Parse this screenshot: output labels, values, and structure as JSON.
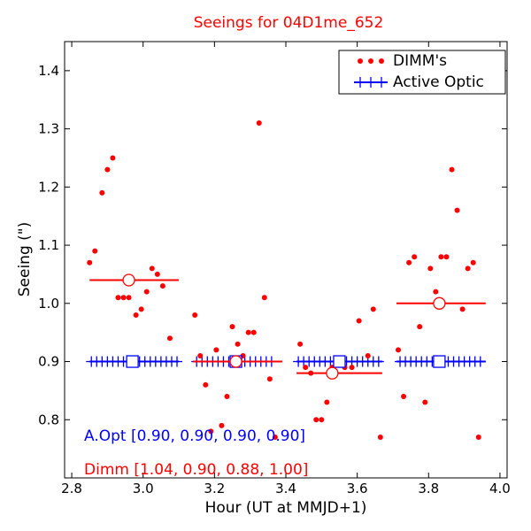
{
  "colors": {
    "dimm": "#ff0000",
    "aopt": "#0000ff",
    "axis": "#000000",
    "marker_fill": "#ffffff"
  },
  "chart_data": {
    "type": "scatter",
    "title": "Seeings for 04D1me_652",
    "xlabel": "Hour (UT at MMJD+1)",
    "ylabel": "Seeing (\")",
    "xlim": [
      2.78,
      4.02
    ],
    "ylim": [
      0.7,
      1.45
    ],
    "xticks": [
      2.8,
      3.0,
      3.2,
      3.4,
      3.6,
      3.8,
      4.0
    ],
    "xtick_labels": [
      "2.8",
      "3.0",
      "3.2",
      "3.4",
      "3.6",
      "3.8",
      "4.0"
    ],
    "yticks": [
      0.8,
      0.9,
      1.0,
      1.1,
      1.2,
      1.3,
      1.4
    ],
    "ytick_labels": [
      "0.8",
      "0.9",
      "1.0",
      "1.1",
      "1.2",
      "1.3",
      "1.4"
    ],
    "legend": {
      "position": "top-right",
      "entries": [
        {
          "label": "DIMM's",
          "series": "dimm"
        },
        {
          "label": "Active Optic",
          "series": "aopt"
        }
      ]
    },
    "annotations": {
      "aopt_text": "A.Opt [0.90, 0.90, 0.90, 0.90]",
      "dimm_text": "Dimm [1.04, 0.90, 0.88, 1.00]"
    },
    "series": [
      {
        "name": "DIMM's",
        "key": "dimm",
        "x": [
          2.85,
          2.865,
          2.885,
          2.9,
          2.915,
          2.93,
          2.945,
          2.96,
          2.98,
          2.995,
          3.01,
          3.025,
          3.04,
          3.055,
          3.075,
          3.145,
          3.16,
          3.175,
          3.19,
          3.205,
          3.22,
          3.235,
          3.25,
          3.265,
          3.28,
          3.295,
          3.31,
          3.325,
          3.34,
          3.355,
          3.37,
          3.44,
          3.455,
          3.47,
          3.485,
          3.5,
          3.515,
          3.53,
          3.55,
          3.565,
          3.585,
          3.605,
          3.63,
          3.645,
          3.665,
          3.715,
          3.73,
          3.745,
          3.76,
          3.775,
          3.79,
          3.805,
          3.82,
          3.835,
          3.85,
          3.865,
          3.88,
          3.895,
          3.91,
          3.925,
          3.94
        ],
        "y": [
          1.07,
          1.09,
          1.19,
          1.23,
          1.25,
          1.01,
          1.01,
          1.01,
          0.98,
          0.99,
          1.02,
          1.06,
          1.05,
          1.03,
          0.94,
          0.98,
          0.91,
          0.86,
          0.78,
          0.92,
          0.79,
          0.84,
          0.96,
          0.93,
          0.91,
          0.95,
          0.95,
          1.31,
          1.01,
          0.87,
          0.77,
          0.93,
          0.89,
          0.88,
          0.8,
          0.8,
          0.83,
          0.89,
          0.9,
          0.89,
          0.89,
          0.97,
          0.91,
          0.99,
          0.77,
          0.92,
          0.84,
          1.07,
          1.08,
          0.96,
          0.83,
          1.06,
          1.02,
          1.08,
          1.08,
          1.23,
          1.16,
          0.99,
          1.06,
          1.07,
          0.77
        ]
      },
      {
        "name": "Active Optic",
        "key": "aopt",
        "x": [
          2.855,
          2.87,
          2.885,
          2.9,
          2.915,
          2.93,
          2.945,
          2.96,
          2.975,
          2.99,
          3.005,
          3.02,
          3.035,
          3.05,
          3.065,
          3.08,
          3.095,
          3.15,
          3.165,
          3.18,
          3.195,
          3.21,
          3.225,
          3.24,
          3.255,
          3.27,
          3.285,
          3.3,
          3.315,
          3.33,
          3.345,
          3.36,
          3.435,
          3.45,
          3.465,
          3.48,
          3.495,
          3.51,
          3.525,
          3.54,
          3.555,
          3.57,
          3.585,
          3.6,
          3.615,
          3.63,
          3.645,
          3.66,
          3.72,
          3.735,
          3.75,
          3.765,
          3.78,
          3.795,
          3.81,
          3.825,
          3.84,
          3.855,
          3.87,
          3.885,
          3.9,
          3.915,
          3.93,
          3.945
        ],
        "y": [
          0.9,
          0.9,
          0.9,
          0.9,
          0.9,
          0.9,
          0.9,
          0.9,
          0.9,
          0.9,
          0.9,
          0.9,
          0.9,
          0.9,
          0.9,
          0.9,
          0.9,
          0.9,
          0.9,
          0.9,
          0.9,
          0.9,
          0.9,
          0.9,
          0.9,
          0.9,
          0.9,
          0.9,
          0.9,
          0.9,
          0.9,
          0.9,
          0.9,
          0.9,
          0.9,
          0.9,
          0.9,
          0.9,
          0.9,
          0.9,
          0.9,
          0.9,
          0.9,
          0.9,
          0.9,
          0.9,
          0.9,
          0.9,
          0.9,
          0.9,
          0.9,
          0.9,
          0.9,
          0.9,
          0.9,
          0.9,
          0.9,
          0.9,
          0.9,
          0.9,
          0.9,
          0.9,
          0.9,
          0.9
        ]
      }
    ],
    "segments": {
      "dimm": [
        {
          "x0": 2.85,
          "x1": 3.1,
          "y": 1.04,
          "marker_x": 2.96
        },
        {
          "x0": 3.14,
          "x1": 3.39,
          "y": 0.9,
          "marker_x": 3.26
        },
        {
          "x0": 3.43,
          "x1": 3.67,
          "y": 0.88,
          "marker_x": 3.53
        },
        {
          "x0": 3.71,
          "x1": 3.96,
          "y": 1.0,
          "marker_x": 3.83
        }
      ],
      "aopt": [
        {
          "x0": 2.85,
          "x1": 3.1,
          "y": 0.9,
          "marker_x": 2.97
        },
        {
          "x0": 3.14,
          "x1": 3.39,
          "y": 0.9,
          "marker_x": 3.26
        },
        {
          "x0": 3.43,
          "x1": 3.67,
          "y": 0.9,
          "marker_x": 3.55
        },
        {
          "x0": 3.71,
          "x1": 3.96,
          "y": 0.9,
          "marker_x": 3.83
        }
      ]
    }
  }
}
